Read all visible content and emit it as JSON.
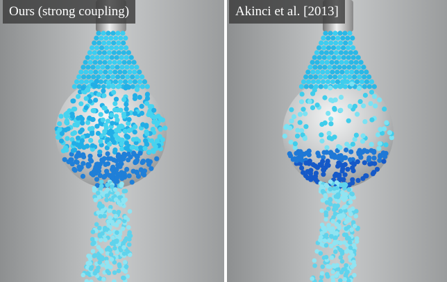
{
  "panels": [
    {
      "label": "Ours (strong coupling)"
    },
    {
      "label": "Akinci et al. [2013]"
    }
  ]
}
